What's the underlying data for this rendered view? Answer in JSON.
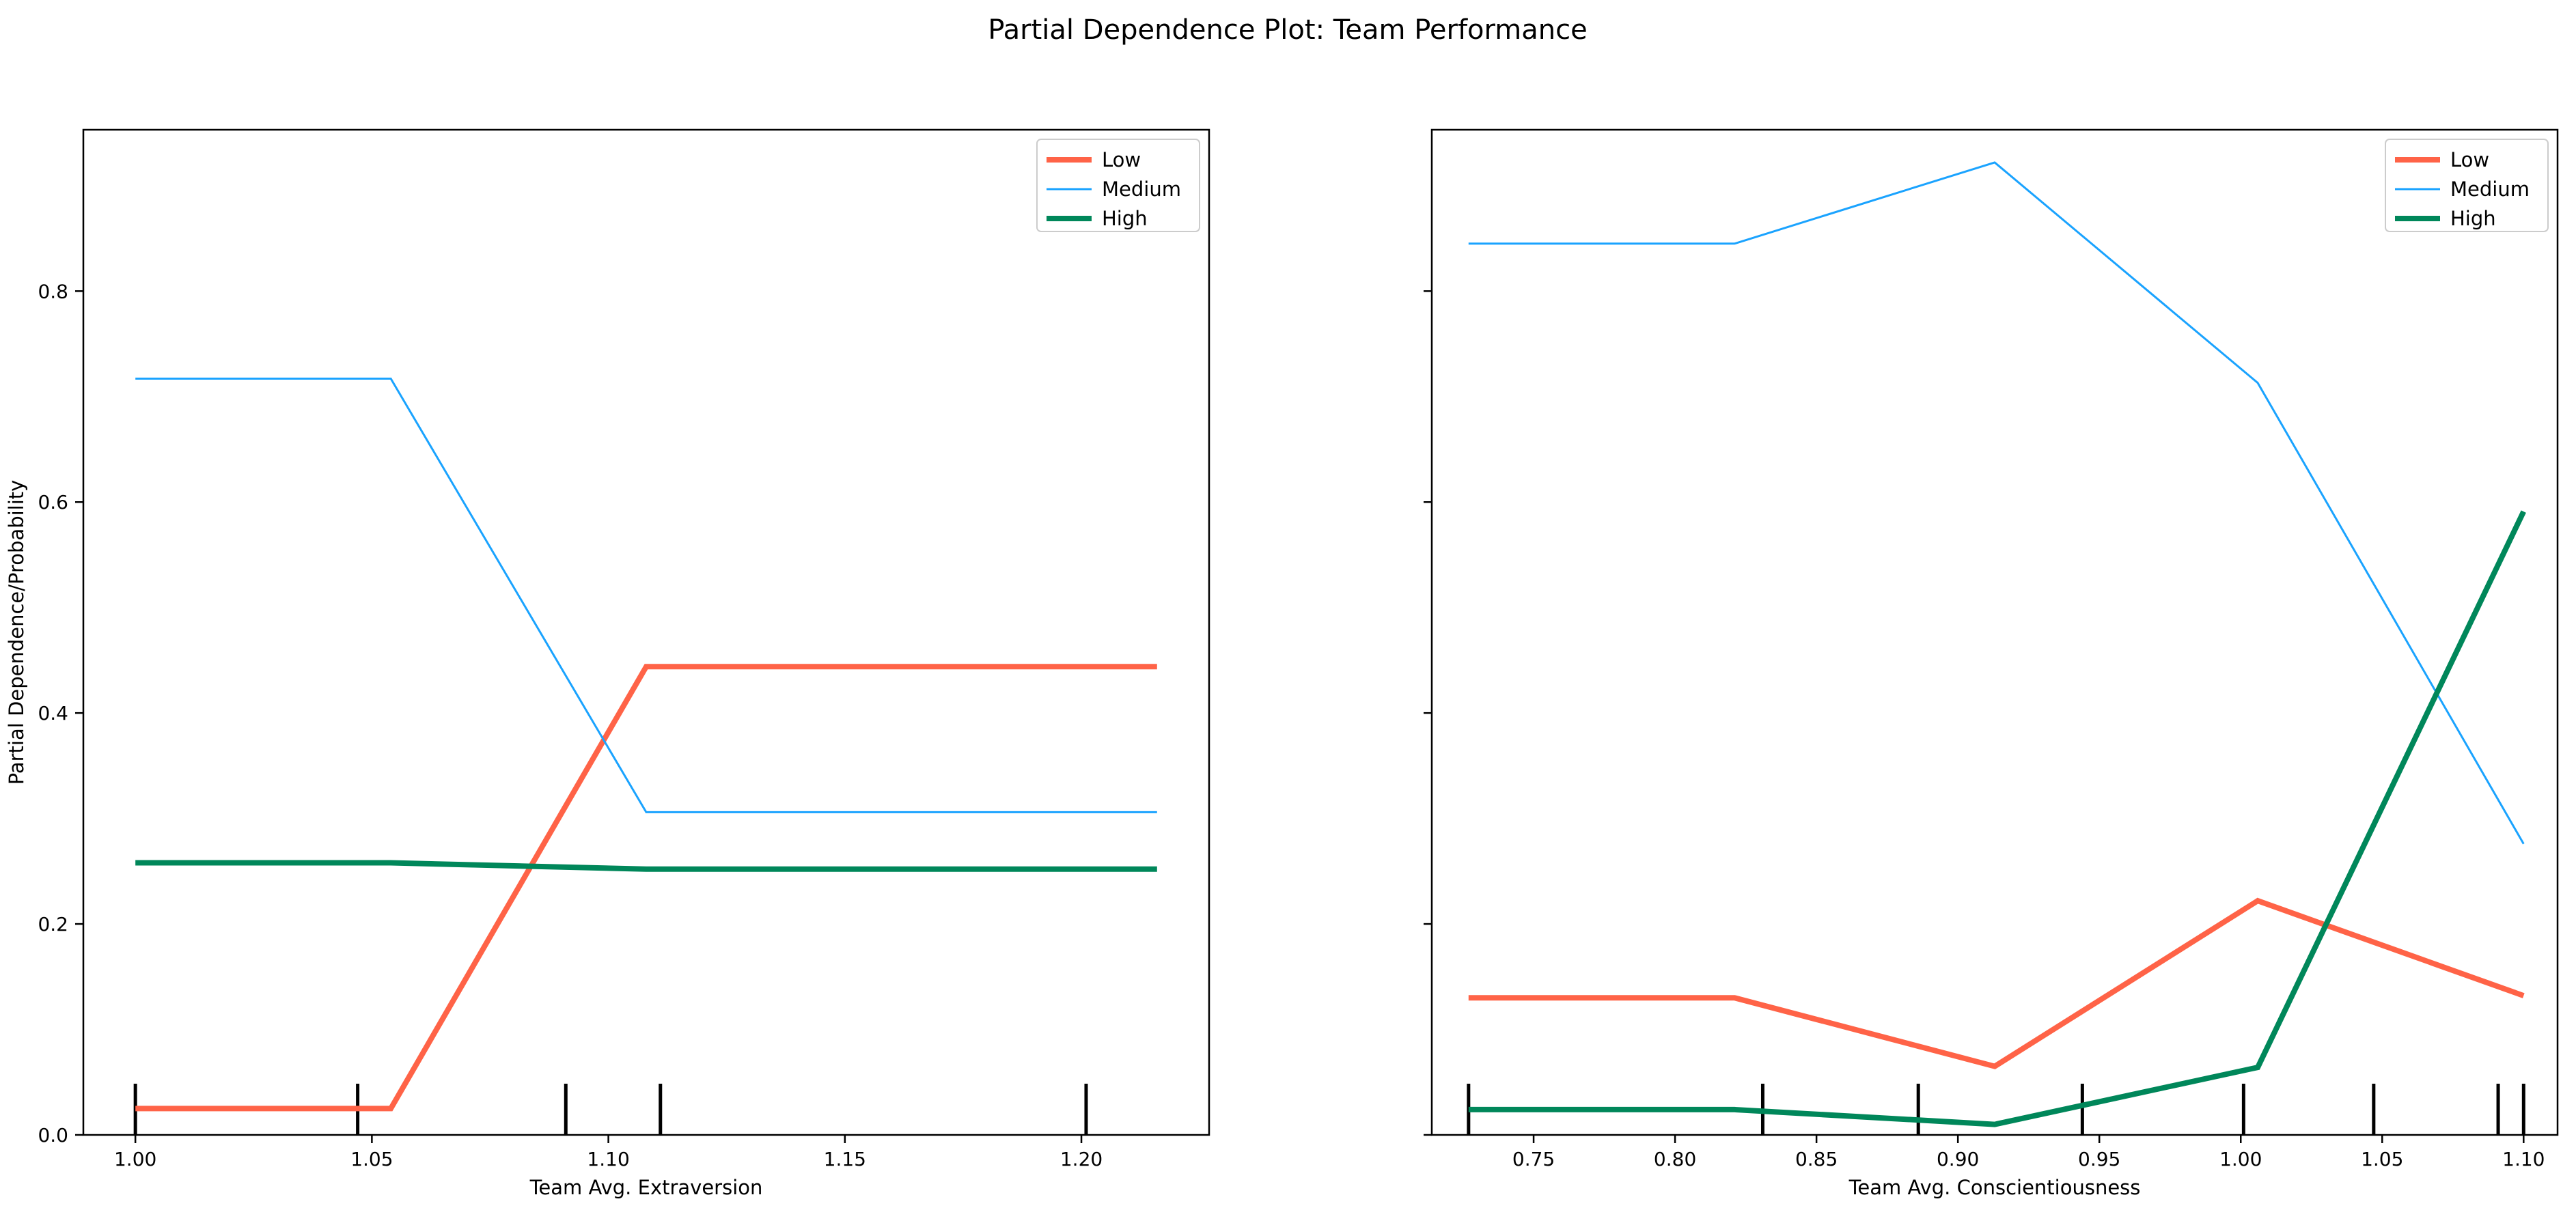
{
  "figure": {
    "title": "Partial Dependence Plot: Team Performance"
  },
  "colors": {
    "Low": "#ff6347",
    "Medium": "#1aa3ff",
    "High": "#00875a"
  },
  "chart_data": [
    {
      "type": "line",
      "xlabel": "Team Avg. Extraversion",
      "ylabel": "Partial Dependence/Probability",
      "xlim": [
        0.989,
        1.227
      ],
      "ylim": [
        0.0,
        0.953
      ],
      "xticks": [
        1.0,
        1.05,
        1.1,
        1.15,
        1.2
      ],
      "xtick_labels": [
        "1.00",
        "1.05",
        "1.10",
        "1.15",
        "1.20"
      ],
      "yticks": [
        0.0,
        0.2,
        0.4,
        0.6,
        0.8
      ],
      "ytick_labels": [
        "0.0",
        "0.2",
        "0.4",
        "0.6",
        "0.8"
      ],
      "legend": {
        "placement": "top-right",
        "entries": [
          "Low",
          "Medium",
          "High"
        ]
      },
      "x": [
        1.0,
        1.054,
        1.108,
        1.216
      ],
      "series": [
        {
          "name": "Low",
          "values": [
            0.025,
            0.025,
            0.444,
            0.444
          ],
          "width": "thick"
        },
        {
          "name": "Medium",
          "values": [
            0.717,
            0.717,
            0.306,
            0.306
          ],
          "width": "thin"
        },
        {
          "name": "High",
          "values": [
            0.258,
            0.258,
            0.252,
            0.252
          ],
          "width": "thick"
        }
      ],
      "rug": [
        1.0,
        1.047,
        1.091,
        1.111,
        1.201
      ]
    },
    {
      "type": "line",
      "xlabel": "Team Avg. Conscientiousness",
      "ylabel": "",
      "xlim": [
        0.714,
        1.112
      ],
      "ylim": [
        0.0,
        0.953
      ],
      "xticks": [
        0.75,
        0.8,
        0.85,
        0.9,
        0.95,
        1.0,
        1.05,
        1.1
      ],
      "xtick_labels": [
        "0.75",
        "0.80",
        "0.85",
        "0.90",
        "0.95",
        "1.00",
        "1.05",
        "1.10"
      ],
      "yticks": [
        0.0,
        0.2,
        0.4,
        0.6,
        0.8
      ],
      "ytick_labels": [],
      "legend": {
        "placement": "top-right",
        "entries": [
          "Low",
          "Medium",
          "High"
        ]
      },
      "x": [
        0.727,
        0.821,
        0.913,
        1.006,
        1.1
      ],
      "series": [
        {
          "name": "Low",
          "values": [
            0.13,
            0.13,
            0.065,
            0.222,
            0.132
          ],
          "width": "thick"
        },
        {
          "name": "Medium",
          "values": [
            0.845,
            0.845,
            0.922,
            0.713,
            0.276
          ],
          "width": "thin"
        },
        {
          "name": "High",
          "values": [
            0.024,
            0.024,
            0.01,
            0.064,
            0.591
          ],
          "width": "thick"
        }
      ],
      "rug": [
        0.727,
        0.831,
        0.886,
        0.944,
        1.001,
        1.047,
        1.091,
        1.1
      ]
    }
  ]
}
